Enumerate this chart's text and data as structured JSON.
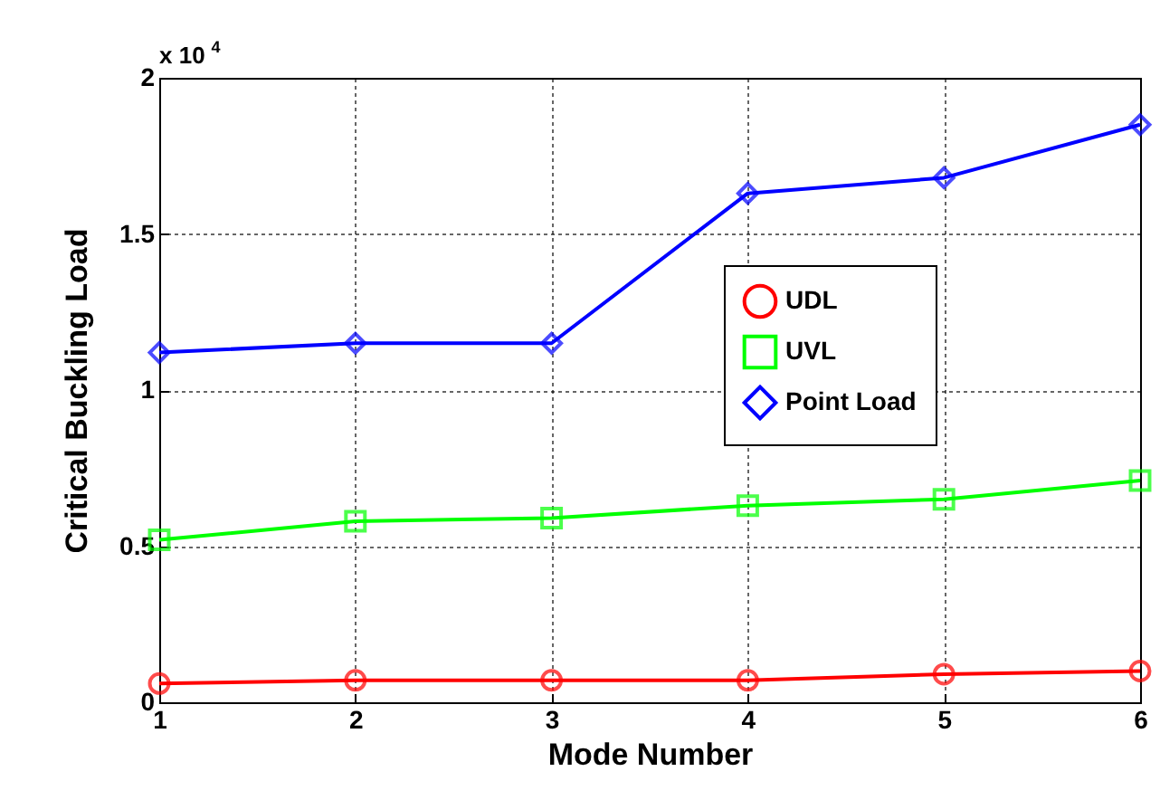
{
  "chart_data": {
    "type": "line",
    "xlabel": "Mode Number",
    "ylabel": "Critical Buckling Load",
    "annotations": [
      "x 10$^{4}$"
    ],
    "x": [
      1,
      2,
      3,
      4,
      5,
      6
    ],
    "series": [
      {
        "name": "UDL",
        "color": "#ff0000",
        "marker": "circle",
        "values": [
          0.06,
          0.07,
          0.07,
          0.07,
          0.09,
          0.1
        ]
      },
      {
        "name": "UVL",
        "color": "#00ff00",
        "marker": "square",
        "values": [
          0.52,
          0.58,
          0.59,
          0.63,
          0.65,
          0.71
        ]
      },
      {
        "name": "Point Load",
        "color": "#0000ff",
        "marker": "diamond",
        "values": [
          1.12,
          1.15,
          1.15,
          1.63,
          1.68,
          1.85
        ]
      }
    ],
    "xlim": [
      1,
      6
    ],
    "xticks": [
      1,
      2,
      3,
      4,
      5,
      6
    ],
    "ylim": [
      0,
      2
    ],
    "yticks": [
      0,
      0.5,
      1,
      1.5,
      2
    ],
    "grid": true,
    "legend": "right",
    "line_style": "solid"
  }
}
